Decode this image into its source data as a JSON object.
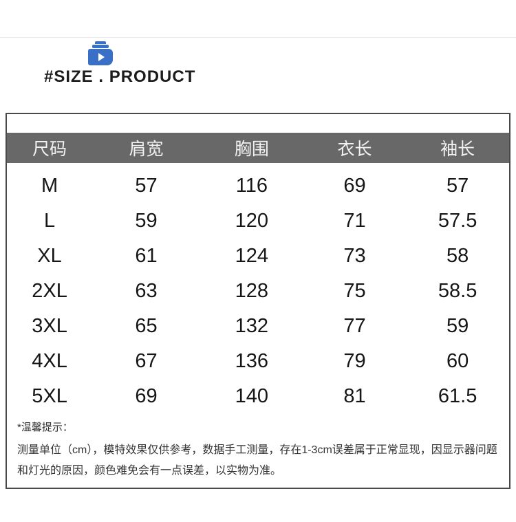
{
  "header": {
    "title": "#SIZE . PRODUCT",
    "icon": "video-bag-icon",
    "accent_color": "#3a6fc8"
  },
  "chart_data": {
    "type": "table",
    "title": "#SIZE . PRODUCT",
    "columns": [
      "尺码",
      "肩宽",
      "胸围",
      "衣长",
      "袖长"
    ],
    "rows": [
      [
        "M",
        57,
        116,
        69,
        57
      ],
      [
        "L",
        59,
        120,
        71,
        57.5
      ],
      [
        "XL",
        61,
        124,
        73,
        58
      ],
      [
        "2XL",
        63,
        128,
        75,
        58.5
      ],
      [
        "3XL",
        65,
        132,
        77,
        59
      ],
      [
        "4XL",
        67,
        136,
        79,
        60
      ],
      [
        "5XL",
        69,
        140,
        81,
        61.5
      ]
    ],
    "header_bg": "#686868",
    "header_text_color": "#f2f2f2",
    "border_color": "#4a4a4a",
    "grid": false,
    "legend_position": "none"
  },
  "notes": {
    "title": "*温馨提示：",
    "body": "测量单位（cm），模特效果仅供参考，数据手工测量，存在1-3cm误差属于正常显现，因显示器问题和灯光的原因，颜色难免会有一点误差，以实物为准。"
  }
}
